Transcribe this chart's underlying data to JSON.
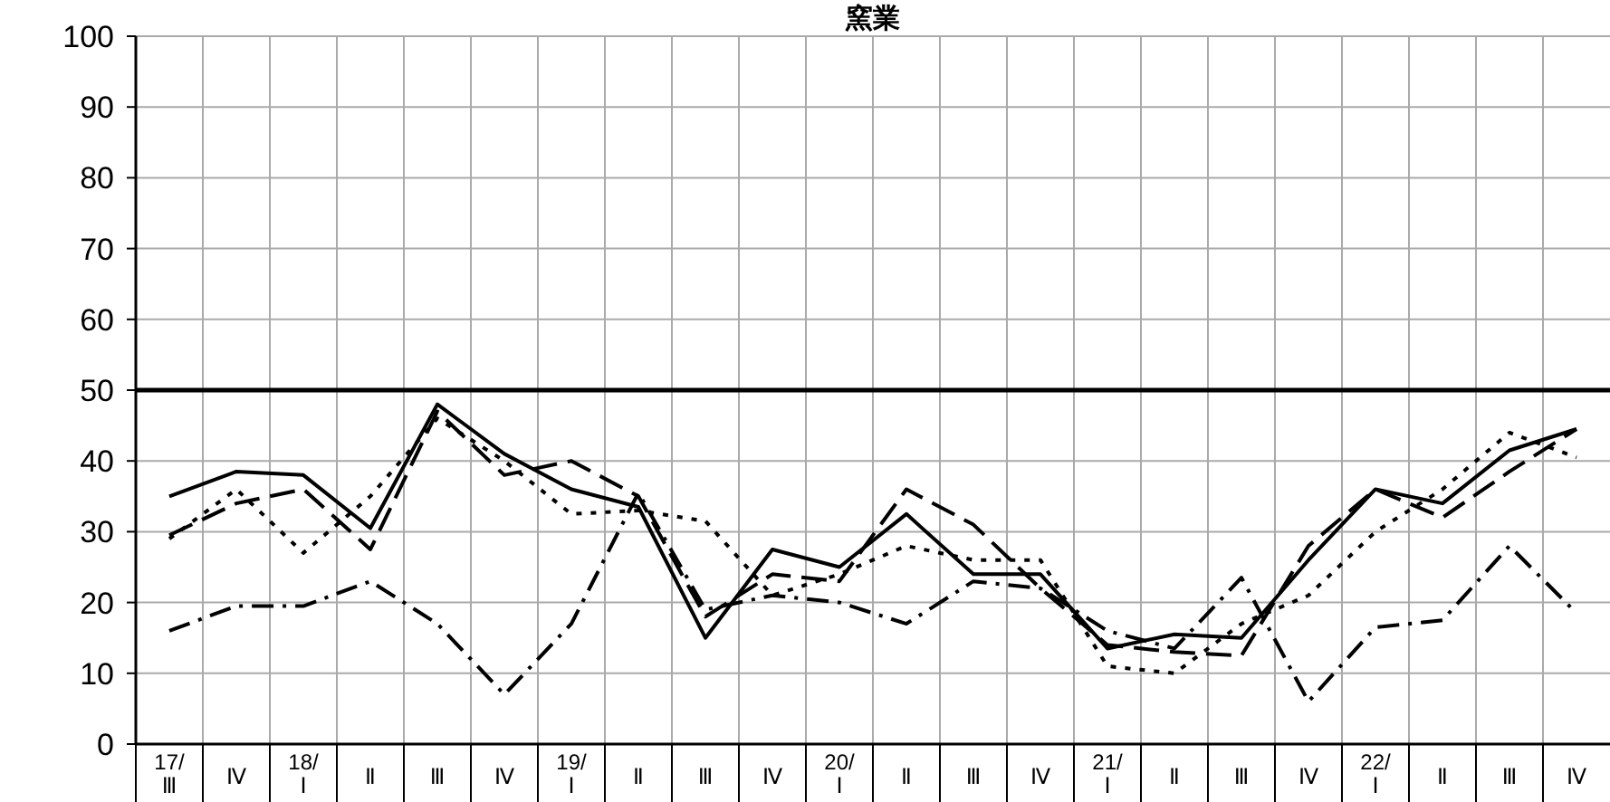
{
  "chart_data": {
    "type": "line",
    "title": "窯業",
    "categories": [
      "17/Ⅲ",
      "Ⅳ",
      "18/Ⅰ",
      "Ⅱ",
      "Ⅲ",
      "Ⅳ",
      "19/Ⅰ",
      "Ⅱ",
      "Ⅲ",
      "Ⅳ",
      "20/Ⅰ",
      "Ⅱ",
      "Ⅲ",
      "Ⅳ",
      "21/Ⅰ",
      "Ⅱ",
      "Ⅲ",
      "Ⅳ",
      "22/Ⅰ",
      "Ⅱ",
      "Ⅲ",
      "Ⅳ"
    ],
    "series": [
      {
        "color": "#000000",
        "line_style": "solid",
        "values": [
          35,
          38.5,
          38,
          30.5,
          48,
          41,
          36,
          33.5,
          15,
          27.5,
          25,
          32.5,
          24,
          24,
          13.5,
          15.5,
          15,
          26,
          36,
          34,
          41.5,
          44.5
        ]
      },
      {
        "color": "#000000",
        "line_style": "dashed",
        "values": [
          29.5,
          34,
          36,
          27.5,
          47,
          38,
          40,
          35,
          18,
          24,
          23,
          36,
          31,
          22,
          14,
          13,
          12.5,
          28,
          36,
          32,
          38.5,
          44.5
        ]
      },
      {
        "color": "#000000",
        "line_style": "dotted",
        "values": [
          29,
          36,
          27,
          35,
          46,
          40,
          32.5,
          33,
          31.5,
          21,
          24,
          28,
          26,
          26,
          11,
          10,
          17,
          21,
          30,
          36,
          44,
          40.5
        ]
      },
      {
        "color": "#000000",
        "line_style": "dashdot",
        "values": [
          16,
          19.5,
          19.5,
          23,
          17,
          7,
          17,
          35.5,
          19,
          21,
          20,
          17,
          23,
          22,
          16,
          13.5,
          23.5,
          6,
          16.5,
          17.5,
          28,
          18.5
        ]
      }
    ],
    "ylim": [
      0,
      100
    ],
    "yticks": [
      0,
      10,
      20,
      30,
      40,
      50,
      60,
      70,
      80,
      90,
      100
    ],
    "grid": true,
    "marker": "none",
    "ref_lines": [
      {
        "axis": "y",
        "value": 50,
        "color": "#000000"
      }
    ]
  }
}
